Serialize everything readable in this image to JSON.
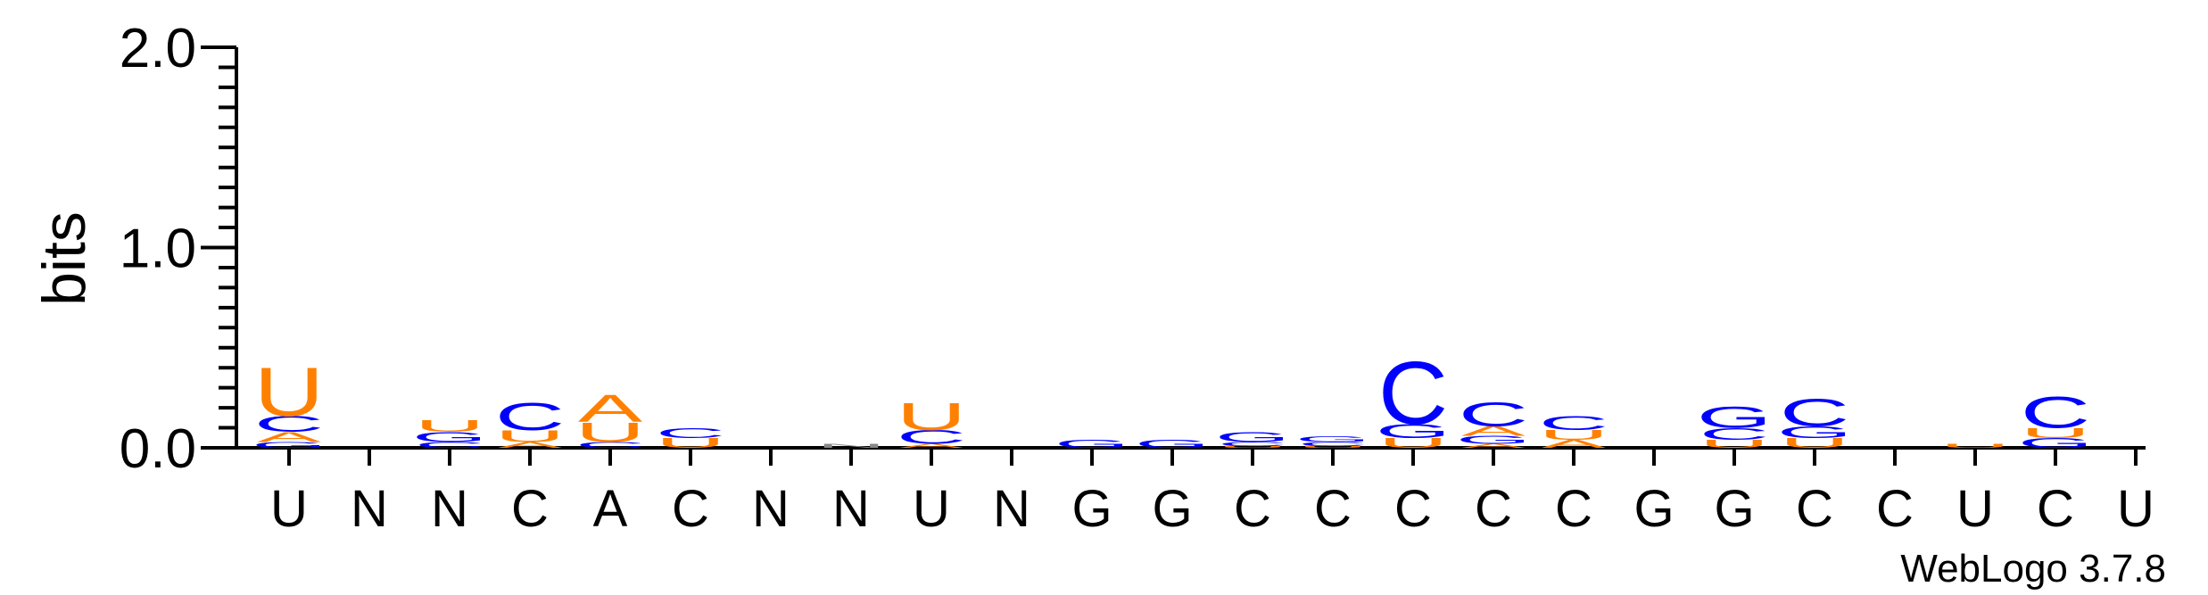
{
  "chart_data": {
    "type": "sequence-logo",
    "ylabel": "bits",
    "ylim": [
      0,
      2.0
    ],
    "y_ticks": [
      "0.0",
      "1.0",
      "2.0"
    ],
    "x_labels": [
      "U",
      "N",
      "N",
      "C",
      "A",
      "C",
      "N",
      "N",
      "U",
      "N",
      "G",
      "G",
      "C",
      "C",
      "C",
      "C",
      "C",
      "G",
      "G",
      "C",
      "C",
      "U",
      "C",
      "U"
    ],
    "colors": {
      "A": "#ff8000",
      "U": "#ff8000",
      "C": "#0000ff",
      "G": "#0000ff"
    },
    "columns": [
      [
        [
          "G",
          0.03
        ],
        [
          "A",
          0.05
        ],
        [
          "C",
          0.08
        ],
        [
          "U",
          0.25
        ]
      ],
      [],
      [
        [
          "C",
          0.03
        ],
        [
          "G",
          0.05
        ],
        [
          "U",
          0.06
        ]
      ],
      [
        [
          "A",
          0.03
        ],
        [
          "U",
          0.06
        ],
        [
          "C",
          0.14
        ]
      ],
      [
        [
          "C",
          0.03
        ],
        [
          "U",
          0.1
        ],
        [
          "A",
          0.14
        ]
      ],
      [
        [
          "U",
          0.05
        ],
        [
          "C",
          0.05
        ]
      ],
      [],
      [
        [
          "N",
          0.02
        ]
      ],
      [
        [
          "A",
          0.02
        ],
        [
          "C",
          0.07
        ],
        [
          "U",
          0.14
        ]
      ],
      [],
      [
        [
          "G",
          0.04
        ]
      ],
      [
        [
          "G",
          0.04
        ]
      ],
      [
        [
          "U",
          0.01
        ],
        [
          "C",
          0.02
        ],
        [
          "G",
          0.05
        ]
      ],
      [
        [
          "U",
          0.01
        ],
        [
          "C",
          0.02
        ],
        [
          "G",
          0.03
        ]
      ],
      [
        [
          "U",
          0.05
        ],
        [
          "G",
          0.07
        ],
        [
          "C",
          0.32
        ]
      ],
      [
        [
          "A",
          0.02
        ],
        [
          "G",
          0.04
        ],
        [
          "A",
          0.05
        ],
        [
          "C",
          0.12
        ]
      ],
      [
        [
          "A",
          0.04
        ],
        [
          "U",
          0.05
        ],
        [
          "C",
          0.07
        ]
      ],
      [],
      [
        [
          "U",
          0.04
        ],
        [
          "C",
          0.06
        ],
        [
          "G",
          0.11
        ]
      ],
      [
        [
          "U",
          0.05
        ],
        [
          "G",
          0.06
        ],
        [
          "C",
          0.14
        ]
      ],
      [],
      [
        [
          "U",
          0.02
        ]
      ],
      [
        [
          "G",
          0.05
        ],
        [
          "U",
          0.05
        ],
        [
          "C",
          0.16
        ]
      ],
      []
    ],
    "credit": "WebLogo 3.7.8"
  }
}
